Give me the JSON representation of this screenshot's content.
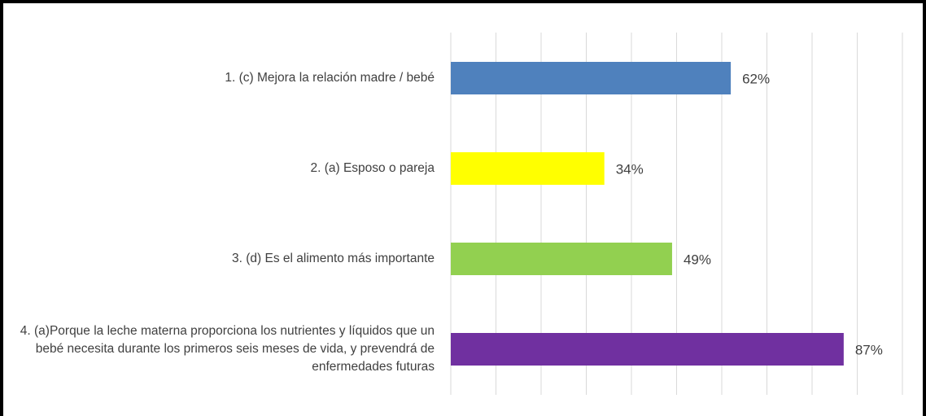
{
  "chart_data": {
    "type": "bar",
    "orientation": "horizontal",
    "categories": [
      "1. (c) Mejora la relación madre / bebé",
      "2. (a) Esposo o pareja",
      "3. (d) Es el alimento más importante",
      "4. (a)Porque la leche materna proporciona los nutrientes y líquidos que un bebé necesita durante los primeros seis meses de vida, y prevendrá de enfermedades futuras"
    ],
    "values": [
      62,
      34,
      49,
      87
    ],
    "value_labels": [
      "62%",
      "34%",
      "49%",
      "87%"
    ],
    "colors": [
      "#4f81bd",
      "#ffff00",
      "#92d050",
      "#7030a0"
    ],
    "xlim": [
      0,
      100
    ],
    "xticks": [
      0,
      10,
      20,
      30,
      40,
      50,
      60,
      70,
      80,
      90,
      100
    ],
    "grid": true
  }
}
